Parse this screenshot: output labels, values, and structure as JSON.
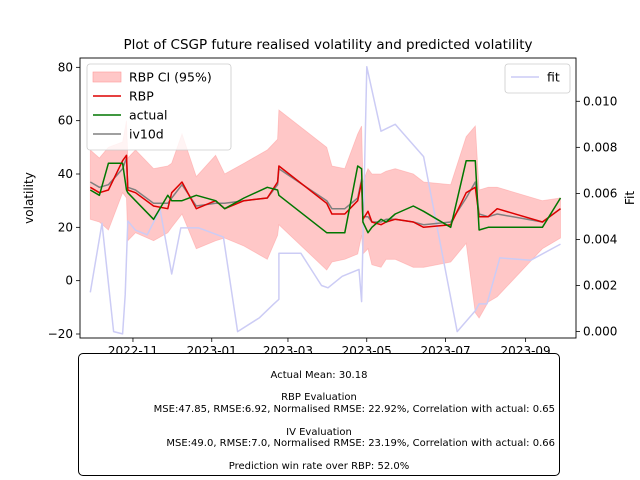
{
  "chart_data": {
    "type": "line",
    "title": "Plot of CSGP future realised volatility and predicted volatility",
    "ylabel": "volatility",
    "y2label": "Fit",
    "x_ticks": [
      "2022-11",
      "2023-01",
      "2023-03",
      "2023-05",
      "2023-07",
      "2023-09"
    ],
    "y_ticks": [
      "−20",
      "0",
      "20",
      "40",
      "60",
      "80"
    ],
    "y2_ticks": [
      "0.000",
      "0.002",
      "0.004",
      "0.006",
      "0.008",
      "0.010"
    ],
    "x_range": [
      "2022-09-21",
      "2023-10-10"
    ],
    "ylim": [
      -21.5,
      83.5
    ],
    "y2lim": [
      -0.00028,
      0.01188
    ],
    "grid": false,
    "legend_left": [
      {
        "label": "RBP CI (95%)",
        "color": "#ff9999",
        "kind": "band"
      },
      {
        "label": "RBP",
        "color": "#dd0000",
        "kind": "line"
      },
      {
        "label": "actual",
        "color": "#007700",
        "kind": "line"
      },
      {
        "label": "iv10d",
        "color": "#808080",
        "kind": "line"
      }
    ],
    "legend_right": [
      {
        "label": "fit",
        "color": "#ccccf5",
        "kind": "line"
      }
    ],
    "series": [
      {
        "name": "RBP",
        "color": "#dd0000",
        "x": [
          "2022-09-29",
          "2022-10-06",
          "2022-10-13",
          "2022-10-24",
          "2022-10-27",
          "2022-10-28",
          "2022-11-03",
          "2022-11-17",
          "2022-11-28",
          "2022-12-01",
          "2022-12-09",
          "2022-12-20",
          "2023-01-04",
          "2023-01-11",
          "2023-01-26",
          "2023-02-13",
          "2023-02-21",
          "2023-02-22",
          "2023-03-31",
          "2023-04-04",
          "2023-04-14",
          "2023-04-24",
          "2023-04-27",
          "2023-04-28",
          "2023-05-02",
          "2023-05-05",
          "2023-05-12",
          "2023-05-16",
          "2023-05-23",
          "2023-06-06",
          "2023-06-14",
          "2023-07-05",
          "2023-07-17",
          "2023-07-24",
          "2023-07-27",
          "2023-08-03",
          "2023-08-10",
          "2023-09-14",
          "2023-09-28"
        ],
        "y": [
          35,
          33,
          34,
          45,
          47,
          34,
          33,
          28,
          27,
          33,
          37,
          27,
          30,
          27,
          30,
          31,
          37,
          43,
          29,
          25,
          25,
          30,
          37,
          23,
          26,
          22,
          21,
          22,
          23,
          22,
          20,
          21,
          33,
          35,
          24,
          24,
          27,
          22,
          27
        ]
      },
      {
        "name": "actual",
        "color": "#007700",
        "x": [
          "2022-09-29",
          "2022-10-06",
          "2022-10-13",
          "2022-10-24",
          "2022-10-27",
          "2022-10-28",
          "2022-11-03",
          "2022-11-17",
          "2022-11-28",
          "2022-12-01",
          "2022-12-09",
          "2022-12-20",
          "2023-01-04",
          "2023-01-11",
          "2023-01-26",
          "2023-02-13",
          "2023-02-21",
          "2023-02-22",
          "2023-03-31",
          "2023-04-04",
          "2023-04-14",
          "2023-04-24",
          "2023-04-27",
          "2023-04-28",
          "2023-05-02",
          "2023-05-05",
          "2023-05-12",
          "2023-05-16",
          "2023-05-23",
          "2023-06-06",
          "2023-06-14",
          "2023-07-05",
          "2023-07-17",
          "2023-07-24",
          "2023-07-27",
          "2023-08-03",
          "2023-08-10",
          "2023-09-14",
          "2023-09-28"
        ],
        "y": [
          34,
          32,
          44,
          44,
          34,
          33,
          30,
          23,
          32,
          30,
          30,
          32,
          30,
          27,
          31,
          35,
          34,
          32,
          18,
          18,
          18,
          43,
          42,
          22,
          18,
          20,
          23,
          22,
          25,
          28,
          26,
          20,
          45,
          45,
          19,
          20,
          20,
          20,
          31
        ]
      },
      {
        "name": "iv10d",
        "color": "#808080",
        "x": [
          "2022-09-29",
          "2022-10-06",
          "2022-10-13",
          "2022-10-24",
          "2022-10-27",
          "2022-10-28",
          "2022-11-03",
          "2022-11-17",
          "2022-11-28",
          "2022-12-01",
          "2022-12-09",
          "2022-12-20",
          "2023-01-04",
          "2023-01-11",
          "2023-01-26",
          "2023-02-13",
          "2023-02-21",
          "2023-02-22",
          "2023-03-31",
          "2023-04-04",
          "2023-04-14",
          "2023-04-24",
          "2023-04-27",
          "2023-04-28",
          "2023-05-02",
          "2023-05-05",
          "2023-05-12",
          "2023-05-16",
          "2023-05-23",
          "2023-06-06",
          "2023-06-14",
          "2023-07-05",
          "2023-07-17",
          "2023-07-24",
          "2023-07-27",
          "2023-08-03",
          "2023-08-10",
          "2023-09-14",
          "2023-09-28"
        ],
        "y": [
          37,
          35,
          36,
          42,
          46,
          35,
          34,
          29,
          29,
          31,
          36,
          28,
          29,
          29,
          30,
          31,
          36,
          42,
          30,
          27,
          27,
          31,
          38,
          24,
          24,
          22,
          22,
          23,
          23,
          22,
          21,
          22,
          31,
          37,
          25,
          24,
          25,
          22,
          27
        ]
      },
      {
        "name": "fit",
        "color": "#ccccf5",
        "axis": "right",
        "x": [
          "2022-09-29",
          "2022-10-08",
          "2022-10-17",
          "2022-10-24",
          "2022-10-26",
          "2022-10-28",
          "2022-11-03",
          "2022-11-12",
          "2022-11-22",
          "2022-12-01",
          "2022-12-08",
          "2022-12-22",
          "2023-01-10",
          "2023-01-21",
          "2023-02-07",
          "2023-02-18",
          "2023-02-22",
          "2023-02-22",
          "2023-03-11",
          "2023-03-27",
          "2023-04-01",
          "2023-04-12",
          "2023-04-25",
          "2023-04-27",
          "2023-05-01",
          "2023-05-12",
          "2023-05-23",
          "2023-06-14",
          "2023-07-10",
          "2023-07-24",
          "2023-07-27",
          "2023-08-02",
          "2023-08-12",
          "2023-09-05",
          "2023-09-28"
        ],
        "y": [
          0.0017,
          0.0047,
          0.0,
          -0.0001,
          0.0016,
          0.0048,
          0.0044,
          0.0042,
          0.0053,
          0.0025,
          0.0045,
          0.0045,
          0.0041,
          0.0,
          0.0006,
          0.0012,
          0.0014,
          0.0034,
          0.0034,
          0.002,
          0.0019,
          0.0024,
          0.0027,
          0.0013,
          0.0115,
          0.0087,
          0.009,
          0.0076,
          0.0,
          0.0009,
          0.0012,
          0.0012,
          0.0032,
          0.0031,
          0.0038
        ]
      }
    ],
    "ci_band": {
      "name": "RBP CI (95%)",
      "color": "#ff9999",
      "x": [
        "2022-09-29",
        "2022-10-06",
        "2022-10-13",
        "2022-10-24",
        "2022-10-27",
        "2022-10-28",
        "2022-11-03",
        "2022-11-17",
        "2022-11-28",
        "2022-12-01",
        "2022-12-09",
        "2022-12-20",
        "2023-01-04",
        "2023-01-11",
        "2023-01-26",
        "2023-02-13",
        "2023-02-21",
        "2023-02-22",
        "2023-03-31",
        "2023-04-04",
        "2023-04-14",
        "2023-04-24",
        "2023-04-27",
        "2023-04-28",
        "2023-05-02",
        "2023-05-05",
        "2023-05-12",
        "2023-05-16",
        "2023-05-23",
        "2023-06-06",
        "2023-06-14",
        "2023-07-05",
        "2023-07-17",
        "2023-07-24",
        "2023-07-27",
        "2023-08-03",
        "2023-08-10",
        "2023-09-14",
        "2023-09-28"
      ],
      "lower": [
        23,
        22,
        19,
        33,
        31,
        15,
        18,
        15,
        18,
        20,
        25,
        12,
        15,
        16,
        13,
        8,
        17,
        21,
        4,
        7,
        8,
        10,
        17,
        10,
        12,
        6,
        5,
        8,
        8,
        5,
        5,
        7,
        14,
        -12,
        -14,
        -8,
        -6,
        12,
        16
      ],
      "upper": [
        49,
        46,
        50,
        52,
        60,
        46,
        49,
        42,
        43,
        44,
        55,
        39,
        47,
        40,
        44,
        49,
        53,
        64,
        50,
        43,
        42,
        55,
        58,
        37,
        42,
        40,
        40,
        41,
        42,
        40,
        37,
        36,
        54,
        58,
        34,
        35,
        35,
        30,
        31
      ]
    }
  },
  "stats": {
    "actual_mean": "Actual Mean: 30.18",
    "rbp_title": "RBP Evaluation",
    "rbp_metrics": "MSE:47.85, RMSE:6.92, Normalised RMSE: 22.92%, Correlation with actual: 0.65",
    "iv_title": "IV Evaluation",
    "iv_metrics": "MSE:49.0, RMSE:7.0, Normalised RMSE: 23.19%, Correlation with actual: 0.66",
    "win_rate": "Prediction win rate over RBP: 52.0%"
  }
}
